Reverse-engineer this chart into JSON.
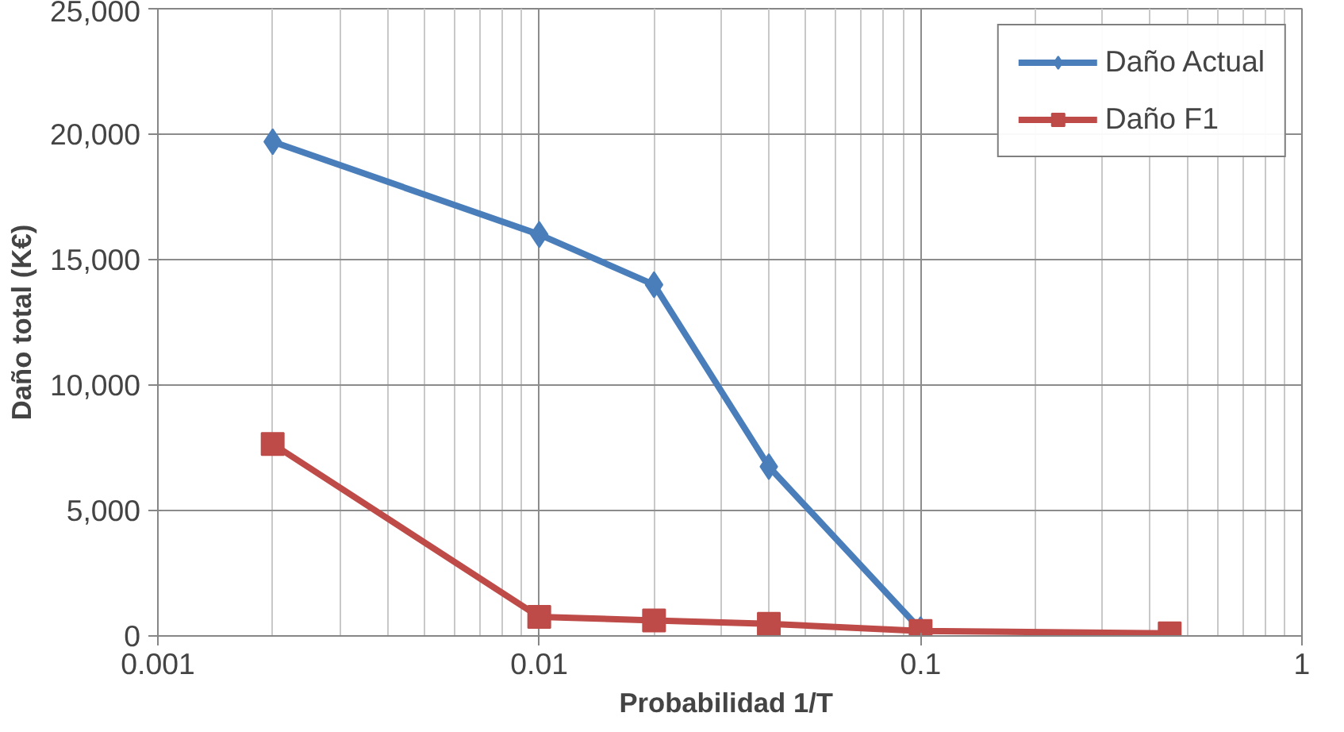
{
  "chart_data": {
    "type": "line",
    "xlabel": "Probabilidad  1/T",
    "ylabel": "Daño total (K€)",
    "x": [
      0.002,
      0.01,
      0.02,
      0.04,
      0.1,
      0.45
    ],
    "series": [
      {
        "name": "Daño Actual",
        "color": "#4a7ebb",
        "marker": "diamond",
        "values": [
          19700,
          16000,
          14000,
          6750,
          250,
          null
        ]
      },
      {
        "name": "Daño F1",
        "color": "#be4b48",
        "marker": "square",
        "values": [
          7650,
          760,
          620,
          480,
          200,
          100
        ]
      }
    ],
    "log": "x",
    "xlim": [
      0.001,
      1
    ],
    "xticks": [
      0.001,
      0.01,
      0.1,
      1
    ],
    "ylim": [
      0,
      25000
    ],
    "yticks": [
      {
        "value": 0,
        "label": "0"
      },
      {
        "value": 5000,
        "label": "5,000"
      },
      {
        "value": 10000,
        "label": "10,000"
      },
      {
        "value": 15000,
        "label": "15,000"
      },
      {
        "value": 20000,
        "label": "20,000"
      },
      {
        "value": 25000,
        "label": "25,000"
      }
    ],
    "grid": true,
    "legend": "top right",
    "line_style": "solid"
  }
}
